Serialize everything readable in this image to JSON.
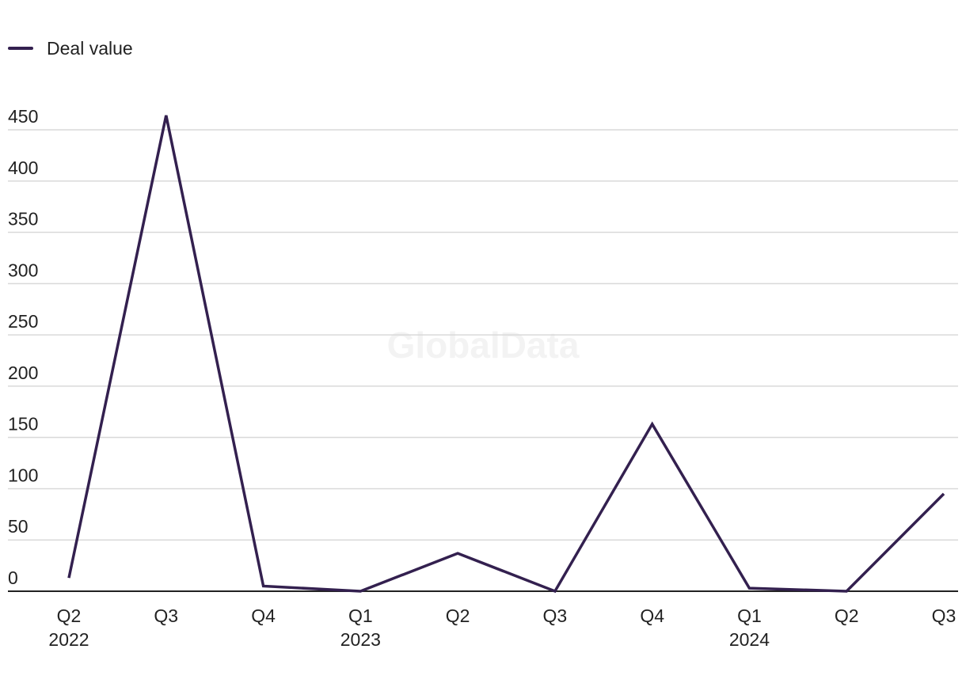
{
  "watermark": "GlobalData",
  "chart_data": {
    "type": "line",
    "categories": [
      "Q2",
      "Q3",
      "Q4",
      "Q1",
      "Q2",
      "Q3",
      "Q4",
      "Q1",
      "Q2",
      "Q3"
    ],
    "year_labels": [
      "2022",
      "",
      "",
      "2023",
      "",
      "",
      "",
      "2024",
      "",
      ""
    ],
    "series": [
      {
        "name": "Deal value",
        "color": "#33204f",
        "values": [
          13,
          464,
          5,
          0,
          37,
          0,
          163,
          3,
          0,
          95
        ]
      }
    ],
    "ylim": [
      0,
      450
    ],
    "yticks": [
      0,
      50,
      100,
      150,
      200,
      250,
      300,
      350,
      400,
      450
    ],
    "grid": true,
    "legend_position": "top-left",
    "title": "",
    "xlabel": "",
    "ylabel": ""
  }
}
